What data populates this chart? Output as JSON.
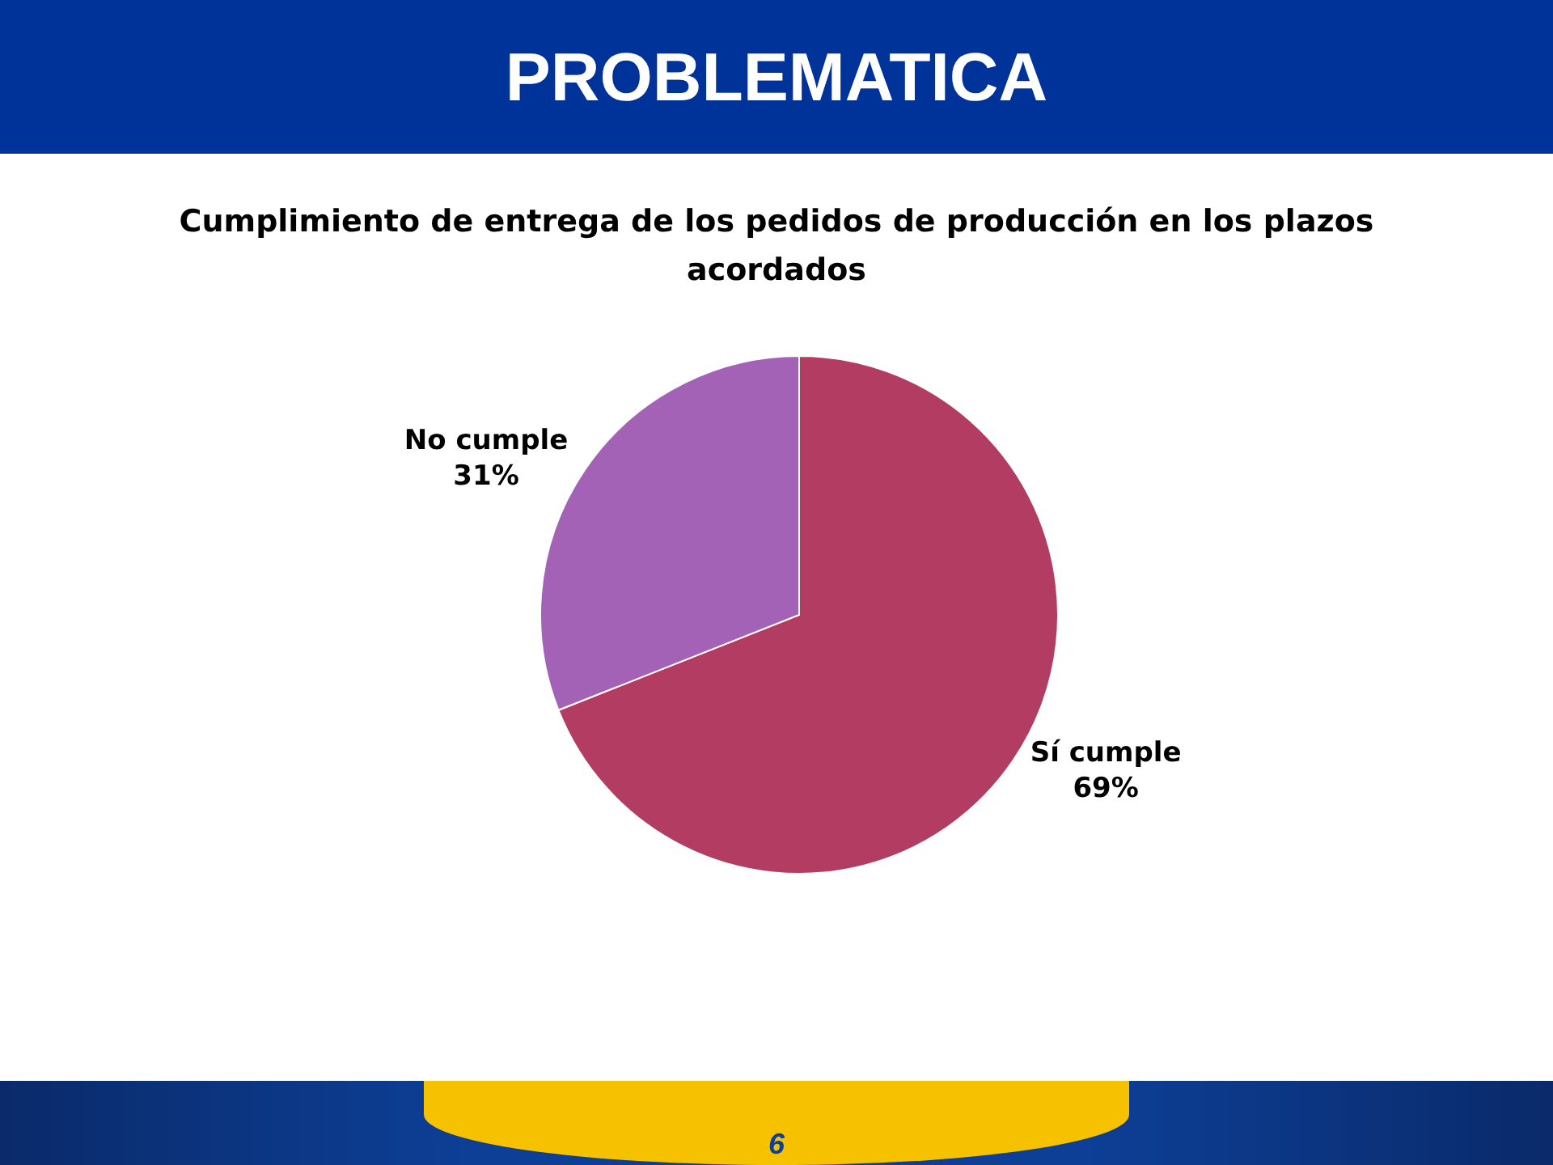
{
  "chart_data": {
    "type": "pie",
    "title": "PROBLEMATICA",
    "subtitle": "Cumplimiento de entrega de los pedidos de producción en los plazos acordados",
    "categories": [
      "Sí cumple",
      "No cumple"
    ],
    "values": [
      69,
      31
    ],
    "colors": [
      "#b33c63",
      "#a462b7"
    ],
    "value_labels": [
      "69%",
      "31%"
    ],
    "annotations": [
      "6"
    ]
  }
}
